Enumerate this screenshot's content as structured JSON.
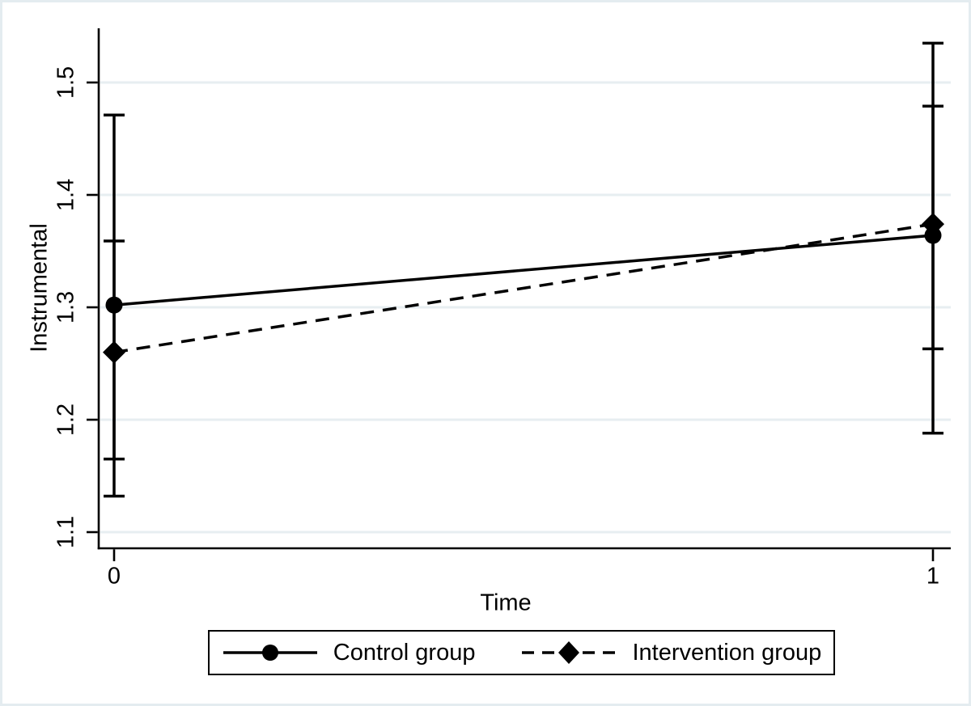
{
  "figure": {
    "background": "#ffffff",
    "border_color": "#e4ecf0",
    "ink_color": "#000000"
  },
  "chart_data": {
    "type": "line",
    "title": "",
    "xlabel": "Time",
    "ylabel": "Instrumental",
    "x": [
      0,
      1
    ],
    "xtick_labels": [
      "0",
      "1"
    ],
    "yticks": [
      1.1,
      1.2,
      1.3,
      1.4,
      1.5
    ],
    "ytick_labels": [
      "1.1",
      "1.2",
      "1.3",
      "1.4",
      "1.5"
    ],
    "ylim": [
      1.086,
      1.548
    ],
    "xlim": [
      -0.02,
      1.02
    ],
    "grid": "horizontal gridlines at each y tick",
    "gridline_color": "#e7eef1",
    "error_bars": "95% CI caps at each point, both groups plotted at same x",
    "series": [
      {
        "name": "Control group",
        "marker": "circle",
        "linestyle": "solid",
        "color": "#000000",
        "values": [
          1.302,
          1.364
        ],
        "ci_low": [
          1.132,
          1.188
        ],
        "ci_high": [
          1.471,
          1.535
        ]
      },
      {
        "name": "Intervention group",
        "marker": "diamond",
        "linestyle": "dashed",
        "color": "#000000",
        "values": [
          1.26,
          1.374
        ],
        "ci_low": [
          1.165,
          1.263
        ],
        "ci_high": [
          1.359,
          1.479
        ]
      }
    ],
    "legend": {
      "position": "bottom",
      "boxed": true,
      "items": [
        "Control group",
        "Intervention group"
      ]
    }
  }
}
